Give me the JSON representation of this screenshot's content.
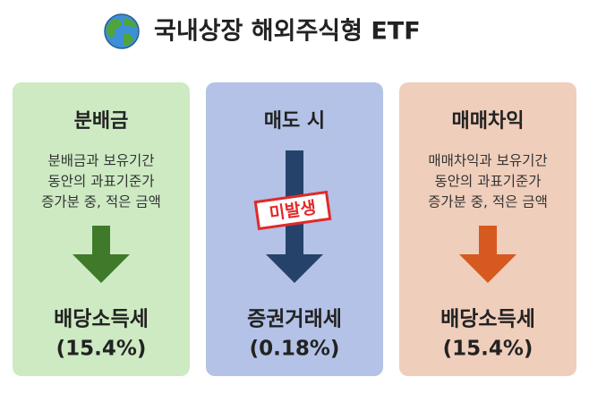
{
  "header": {
    "title": "국내상장 해외주식형 ETF"
  },
  "cards": [
    {
      "heading": "분배금",
      "description": [
        "분배금과 보유기간",
        "동안의 과표기준가",
        "증가분 중, 적은 금액"
      ],
      "tax": "배당소득세",
      "rate": "(15.4%)"
    },
    {
      "heading": "매도 시",
      "stamp": "미발생",
      "tax": "증권거래세",
      "rate": "(0.18%)"
    },
    {
      "heading": "매매차익",
      "description": [
        "매매차익과 보유기간",
        "동안의 과표기준가",
        "증가분 중, 적은 금액"
      ],
      "tax": "배당소득세",
      "rate": "(15.4%)"
    }
  ]
}
